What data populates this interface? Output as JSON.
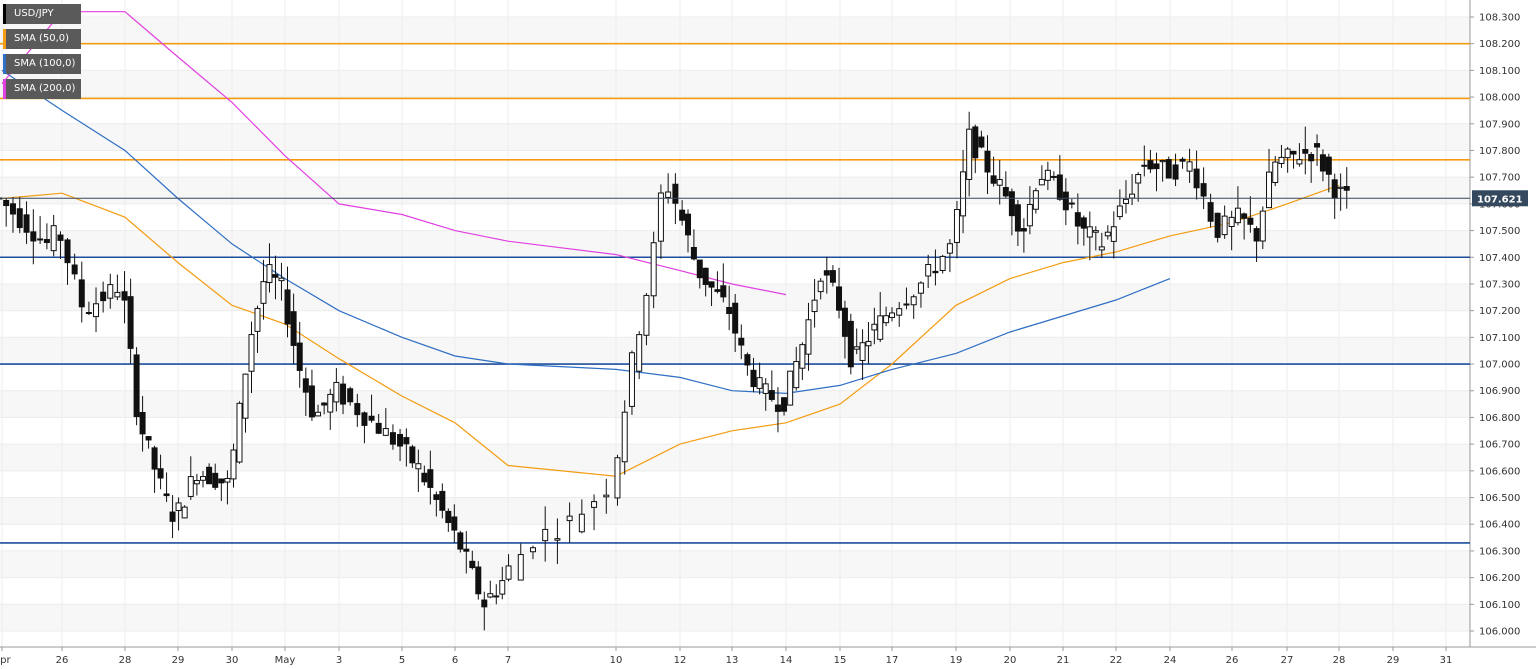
{
  "chart_data": {
    "type": "candlestick",
    "symbol": "USD/JPY",
    "price_axis": {
      "min": 106.0,
      "max": 108.3,
      "step": 0.1,
      "tick_labels": [
        "106.000",
        "106.100",
        "106.200",
        "106.300",
        "106.400",
        "106.500",
        "106.600",
        "106.700",
        "106.800",
        "106.900",
        "107.000",
        "107.100",
        "107.200",
        "107.300",
        "107.400",
        "107.500",
        "107.600",
        "107.700",
        "107.800",
        "107.900",
        "108.000",
        "108.100",
        "108.200",
        "108.300"
      ]
    },
    "time_axis": {
      "labels": [
        {
          "text": "Apr",
          "at": 0
        },
        {
          "text": "26",
          "at": 1
        },
        {
          "text": "28",
          "at": 2
        },
        {
          "text": "29",
          "at": 3
        },
        {
          "text": "30",
          "at": 4
        },
        {
          "text": "May",
          "at": 5
        },
        {
          "text": "3",
          "at": 6
        },
        {
          "text": "5",
          "at": 7
        },
        {
          "text": "6",
          "at": 8
        },
        {
          "text": "7",
          "at": 9
        },
        {
          "text": "10",
          "at": 10
        },
        {
          "text": "12",
          "at": 11
        },
        {
          "text": "13",
          "at": 12
        },
        {
          "text": "14",
          "at": 13
        },
        {
          "text": "15",
          "at": 14
        },
        {
          "text": "17",
          "at": 15
        },
        {
          "text": "19",
          "at": 16
        },
        {
          "text": "20",
          "at": 17
        },
        {
          "text": "21",
          "at": 18
        },
        {
          "text": "22",
          "at": 19
        },
        {
          "text": "24",
          "at": 20
        },
        {
          "text": "26",
          "at": 21
        },
        {
          "text": "27",
          "at": 22
        },
        {
          "text": "28",
          "at": 23
        },
        {
          "text": "29",
          "at": 24
        },
        {
          "text": "31",
          "at": 25
        }
      ]
    },
    "current_price": {
      "value": 107.621,
      "label": "107.621",
      "color": "#34495e"
    },
    "levels": [
      {
        "value": 108.2,
        "color": "#f39c12"
      },
      {
        "value": 107.995,
        "color": "#f39c12"
      },
      {
        "value": 107.765,
        "color": "#f39c12"
      },
      {
        "value": 107.4,
        "color": "#1f4e9c"
      },
      {
        "value": 107.0,
        "color": "#1f4e9c"
      },
      {
        "value": 106.33,
        "color": "#1f4e9c"
      }
    ],
    "legend": [
      {
        "label": "USD/JPY",
        "color": "#000000"
      },
      {
        "label": "SMA (50,0)",
        "color": "#f39c12"
      },
      {
        "label": "SMA (100,0)",
        "color": "#2f6fc4"
      },
      {
        "label": "SMA (200,0)",
        "color": "#e040e0"
      }
    ],
    "series": [
      {
        "name": "SMA (50,0)",
        "color": "#f39c12",
        "points": [
          [
            0,
            107.62
          ],
          [
            1,
            107.64
          ],
          [
            2,
            107.55
          ],
          [
            3,
            107.38
          ],
          [
            4,
            107.22
          ],
          [
            5,
            107.15
          ],
          [
            6,
            107.02
          ],
          [
            7,
            106.88
          ],
          [
            8,
            106.78
          ],
          [
            9,
            106.62
          ],
          [
            10,
            106.58
          ],
          [
            11,
            106.7
          ],
          [
            12,
            106.75
          ],
          [
            13,
            106.78
          ],
          [
            14,
            106.85
          ],
          [
            15,
            107.0
          ],
          [
            16,
            107.22
          ],
          [
            17,
            107.32
          ],
          [
            18,
            107.38
          ],
          [
            19,
            107.42
          ],
          [
            20,
            107.48
          ],
          [
            21,
            107.53
          ],
          [
            22,
            107.6
          ],
          [
            23,
            107.67
          ]
        ]
      },
      {
        "name": "SMA (100,0)",
        "color": "#2f6fc4",
        "points": [
          [
            0,
            108.1
          ],
          [
            1,
            107.95
          ],
          [
            2,
            107.8
          ],
          [
            3,
            107.62
          ],
          [
            4,
            107.45
          ],
          [
            5,
            107.32
          ],
          [
            6,
            107.2
          ],
          [
            7,
            107.1
          ],
          [
            8,
            107.03
          ],
          [
            9,
            107.0
          ],
          [
            10,
            106.98
          ],
          [
            11,
            106.95
          ],
          [
            12,
            106.9
          ],
          [
            13,
            106.89
          ],
          [
            14,
            106.92
          ],
          [
            15,
            106.98
          ],
          [
            16,
            107.04
          ],
          [
            17,
            107.12
          ],
          [
            18,
            107.18
          ],
          [
            19,
            107.24
          ],
          [
            20,
            107.32
          ]
        ]
      },
      {
        "name": "SMA (200,0)",
        "color": "#e040e0",
        "points": [
          [
            0,
            108.05
          ],
          [
            1,
            108.32
          ],
          [
            2,
            108.32
          ],
          [
            3,
            108.15
          ],
          [
            4,
            107.98
          ],
          [
            5,
            107.78
          ],
          [
            6,
            107.6
          ],
          [
            7,
            107.56
          ],
          [
            8,
            107.5
          ],
          [
            9,
            107.46
          ],
          [
            10,
            107.41
          ],
          [
            11,
            107.35
          ],
          [
            12,
            107.3
          ],
          [
            13,
            107.26
          ]
        ]
      }
    ]
  }
}
